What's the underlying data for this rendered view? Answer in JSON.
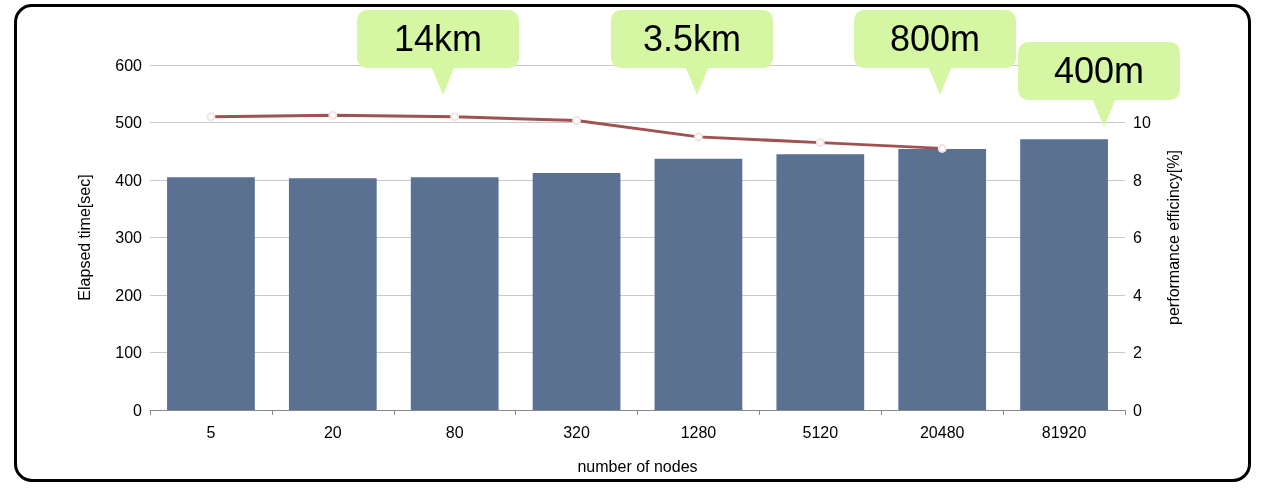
{
  "chart_data": {
    "type": "bar",
    "xlabel": "number of nodes",
    "ylabel": "Elapsed time[sec]",
    "y2label": "performance efficincy[%]",
    "categories": [
      "5",
      "20",
      "80",
      "320",
      "1280",
      "5120",
      "20480",
      "81920"
    ],
    "series": [
      {
        "color": "#5b7192",
        "values": [
          405,
          403,
          405,
          412,
          437,
          445,
          454,
          471
        ]
      },
      {
        "type": "line",
        "axis": "y2",
        "color": "#a05252",
        "marker": "circle",
        "values": [
          10.2,
          10.25,
          10.2,
          10.07,
          9.5,
          9.3,
          9.1,
          null
        ]
      }
    ],
    "ylim": [
      0,
      600
    ],
    "yticks": [
      0,
      100,
      200,
      300,
      400,
      500,
      600
    ],
    "y2lim": [
      0,
      12
    ],
    "y2ticks": [
      0,
      2,
      4,
      6,
      8,
      10
    ],
    "grid": "y",
    "annotations": [
      "14km",
      "3.5km",
      "800m",
      "400m"
    ]
  }
}
